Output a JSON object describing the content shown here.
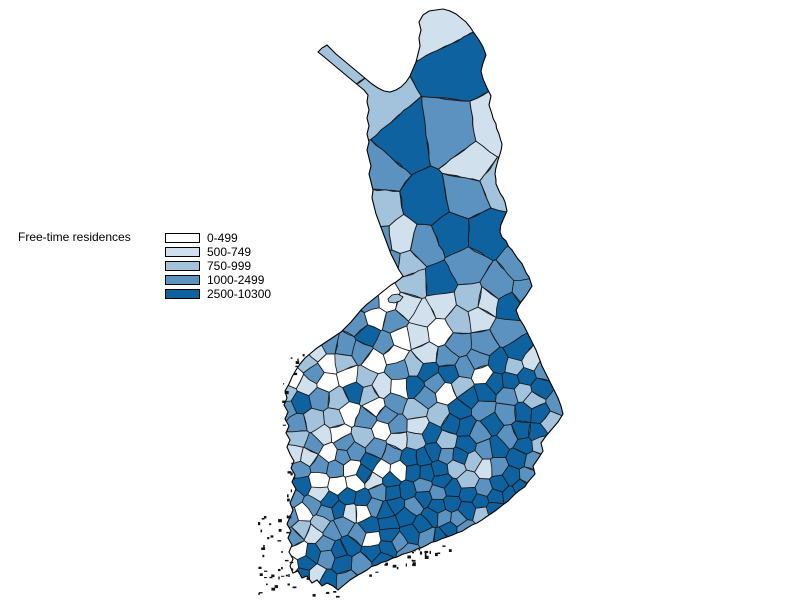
{
  "legend": {
    "title": "Free-time residences",
    "swatch_border_color": "#000000",
    "items": [
      {
        "label": "0-499",
        "color": "#ffffff"
      },
      {
        "label": "500-749",
        "color": "#d0e0ed"
      },
      {
        "label": "750-999",
        "color": "#a3c3dc"
      },
      {
        "label": "1000-2499",
        "color": "#5b92bf"
      },
      {
        "label": "2500-10300",
        "color": "#0e62a0"
      }
    ]
  },
  "map": {
    "country": "Finland",
    "outline_color": "#000000",
    "cell_border_color": "#1b1b1b",
    "island_color": "#111111",
    "sea_color": "#ffffff"
  }
}
